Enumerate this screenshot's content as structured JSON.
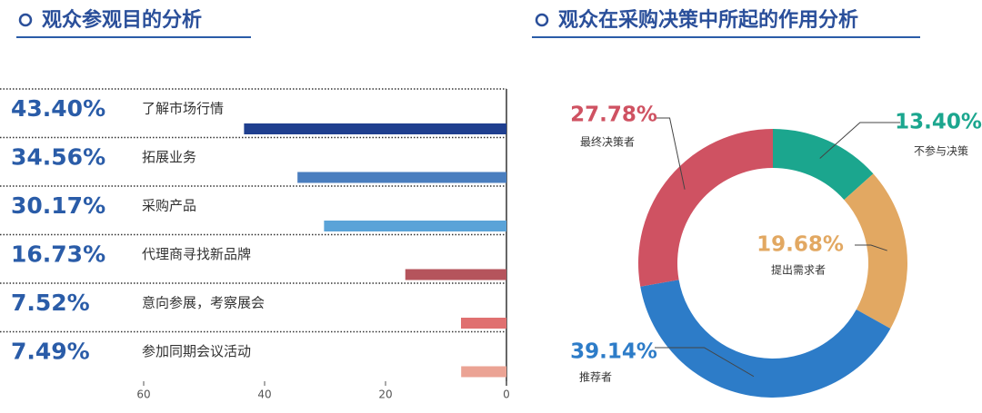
{
  "chart_data": [
    {
      "type": "hbar-reversed",
      "title": "观众参观目的分析",
      "categories": [
        "了解市场行情",
        "拓展业务",
        "采购产品",
        "代理商寻找新品牌",
        "意向参展，考察展会",
        "参加同期会议活动"
      ],
      "values": [
        43.4,
        34.56,
        30.17,
        16.73,
        7.52,
        7.49
      ],
      "value_labels": [
        "43.40%",
        "34.56%",
        "30.17%",
        "16.73%",
        "7.52%",
        "7.49%"
      ],
      "colors": [
        "#1f3f8f",
        "#4a7ebf",
        "#5aa3d8",
        "#b5545c",
        "#e07070",
        "#eba394"
      ],
      "xlim": [
        60,
        0
      ],
      "xticks": [
        60,
        40,
        20,
        0
      ]
    },
    {
      "type": "donut",
      "title": "观众在采购决策中所起的作用分析",
      "categories": [
        "不参与决策",
        "提出需求者",
        "推荐者",
        "最终决策者"
      ],
      "values": [
        13.4,
        19.68,
        39.14,
        27.78
      ],
      "value_labels": [
        "13.40%",
        "19.68%",
        "39.14%",
        "27.78%"
      ],
      "colors": [
        "#1ba68e",
        "#e2a862",
        "#2d7cc8",
        "#cf5262"
      ]
    }
  ]
}
